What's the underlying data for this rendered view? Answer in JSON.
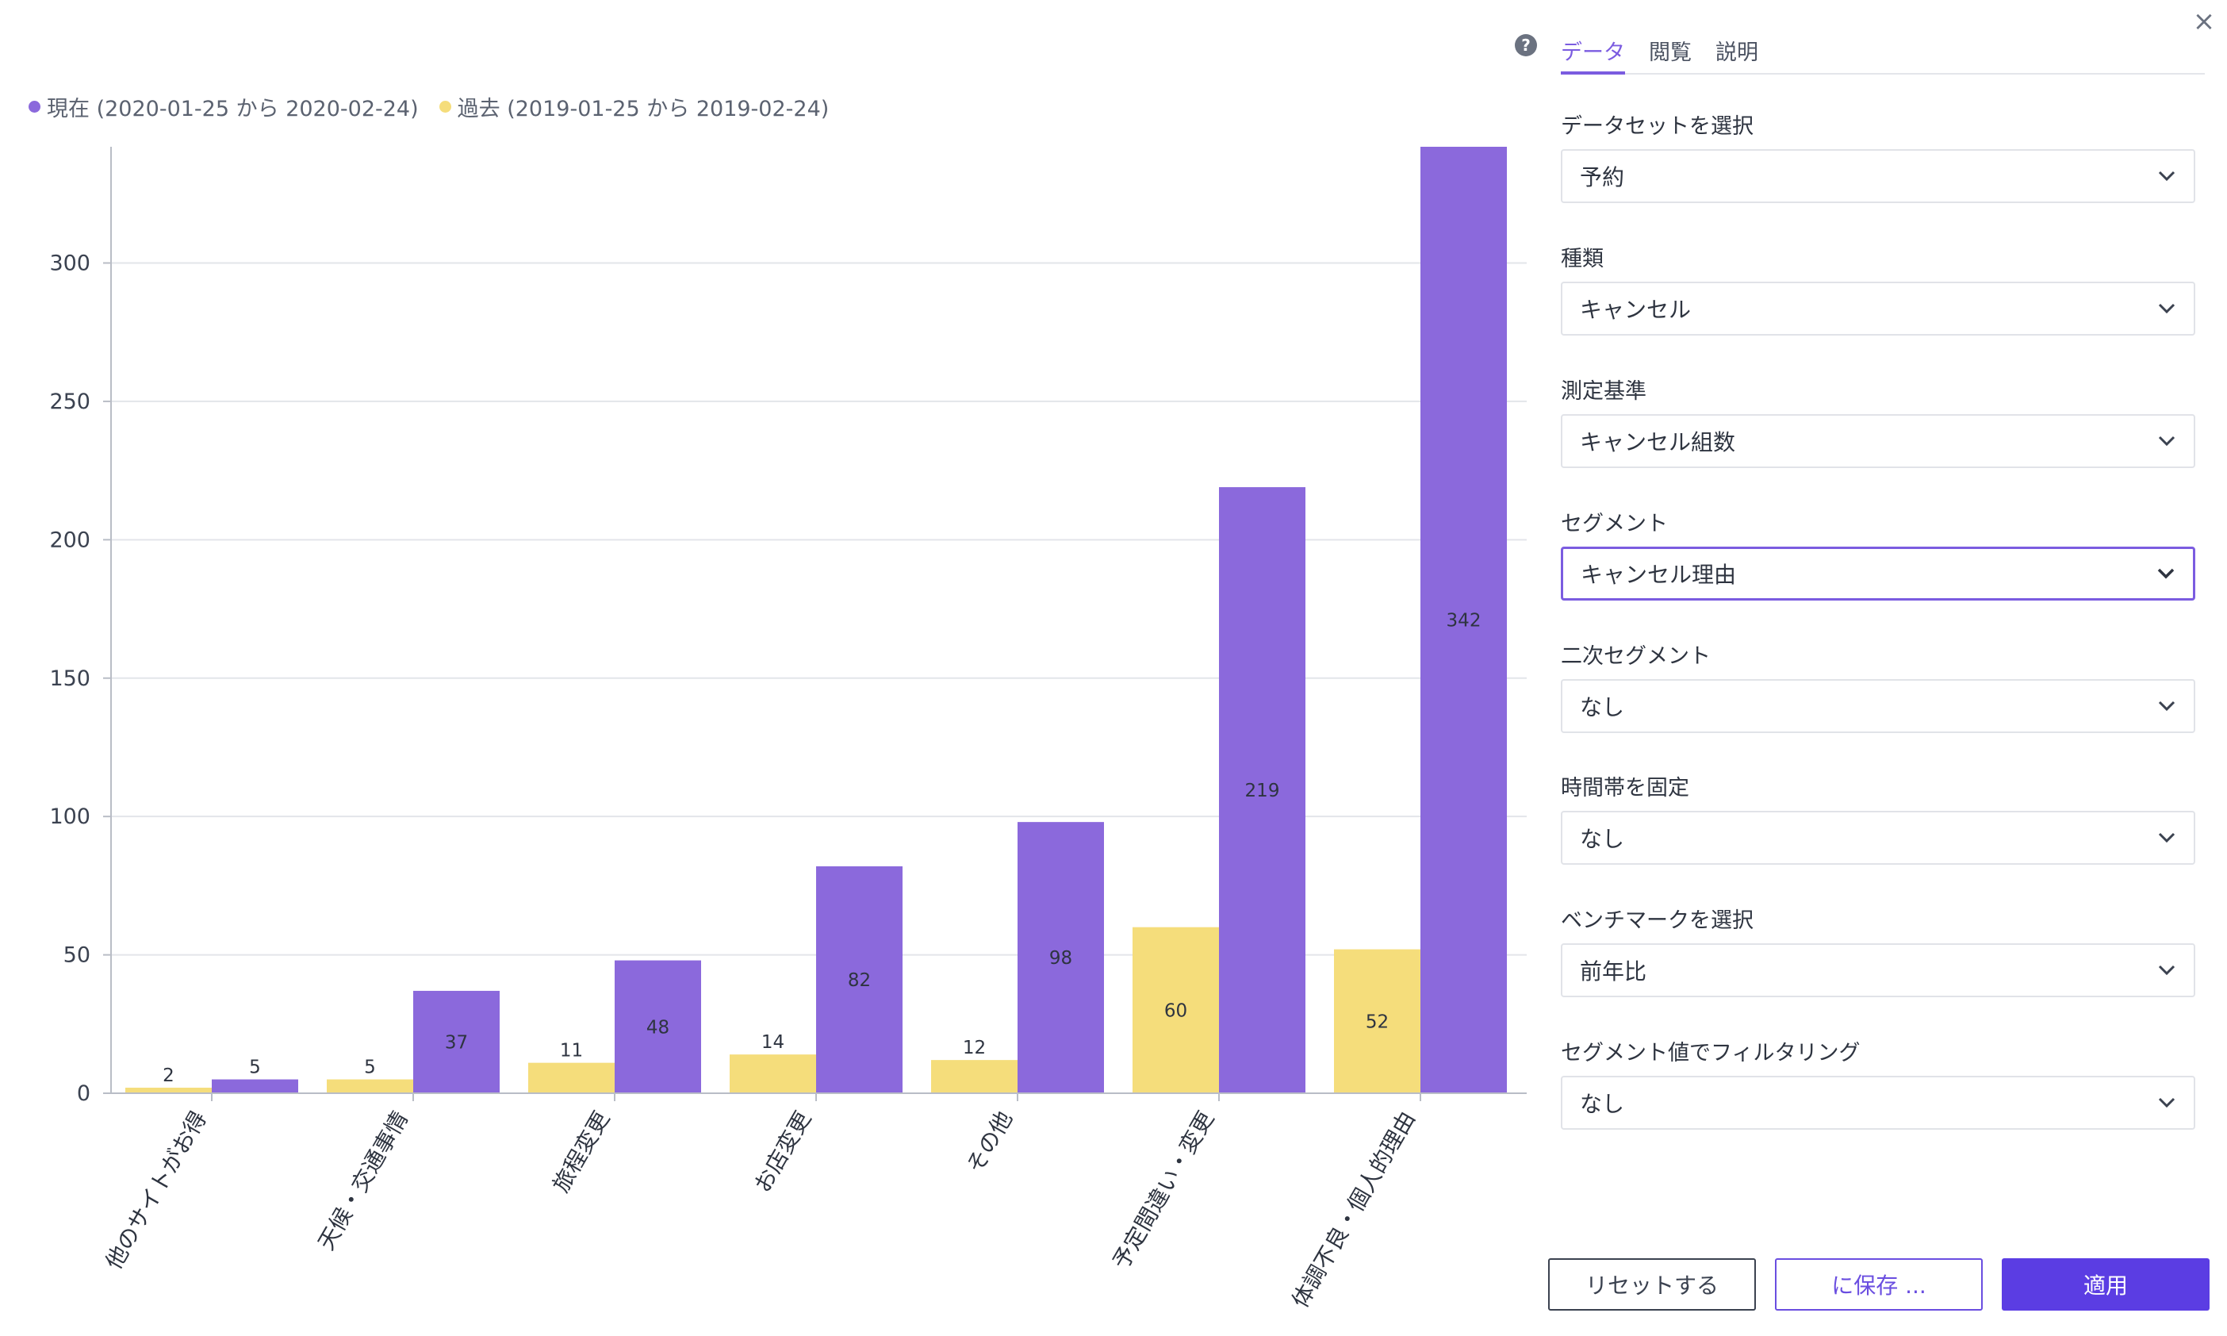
{
  "colors": {
    "current": "#8b69dc",
    "past": "#f5dd7b",
    "accent": "#7b5ce0",
    "primary_button": "#5b3de3"
  },
  "legend": {
    "current": "現在 (2020-01-25 から 2020-02-24)",
    "past": "過去 (2019-01-25 から 2019-02-24)"
  },
  "chart_data": {
    "type": "bar",
    "categories": [
      "他のサイトがお得",
      "天候・交通事情",
      "旅程変更",
      "お店変更",
      "その他",
      "予定間違い・変更",
      "体調不良・個人的理由"
    ],
    "series": [
      {
        "name": "過去 (2019-01-25 から 2019-02-24)",
        "values": [
          2,
          5,
          11,
          14,
          12,
          60,
          52
        ]
      },
      {
        "name": "現在 (2020-01-25 から 2020-02-24)",
        "values": [
          5,
          37,
          48,
          82,
          98,
          219,
          342
        ]
      }
    ],
    "yticks": [
      0,
      50,
      100,
      150,
      200,
      250,
      300
    ],
    "ylim": [
      0,
      342
    ],
    "grid": true,
    "legend_position": "top-left"
  },
  "panel": {
    "help_icon": "?",
    "close_icon": "×",
    "tabs": [
      "データ",
      "閲覧",
      "説明"
    ],
    "active_tab": 0,
    "fields": [
      {
        "label": "データセットを選択",
        "value": "予約"
      },
      {
        "label": "種類",
        "value": "キャンセル"
      },
      {
        "label": "測定基準",
        "value": "キャンセル組数"
      },
      {
        "label": "セグメント",
        "value": "キャンセル理由"
      },
      {
        "label": "二次セグメント",
        "value": "なし"
      },
      {
        "label": "時間帯を固定",
        "value": "なし"
      },
      {
        "label": "ベンチマークを選択",
        "value": "前年比"
      },
      {
        "label": "セグメント値でフィルタリング",
        "value": "なし"
      }
    ],
    "buttons": {
      "reset": "リセットする",
      "save": "に保存 ...",
      "apply": "適用"
    }
  }
}
